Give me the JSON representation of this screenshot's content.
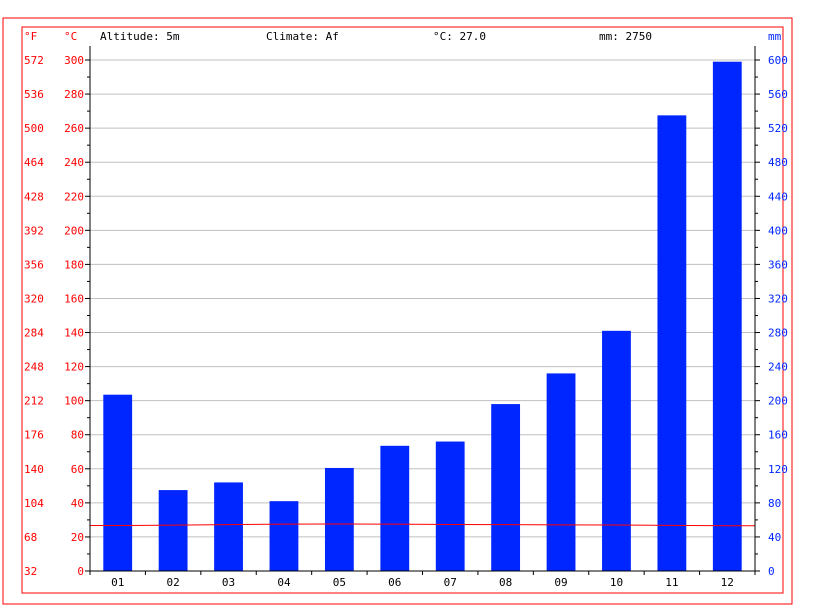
{
  "chart_data": {
    "type": "bar",
    "header": {
      "altitude": "Altitude: 5m",
      "climate": "Climate: Af",
      "temp": "°C: 27.0",
      "precip": "mm: 2750"
    },
    "units": {
      "fahrenheit": "°F",
      "celsius": "°C",
      "mm": "mm"
    },
    "categories": [
      "01",
      "02",
      "03",
      "04",
      "05",
      "06",
      "07",
      "08",
      "09",
      "10",
      "11",
      "12"
    ],
    "series": [
      {
        "unit": "mm",
        "type": "bar",
        "color": "#0026ff",
        "values": [
          207,
          95,
          104,
          82,
          121,
          147,
          152,
          196,
          232,
          282,
          535,
          598
        ]
      },
      {
        "unit": "°C",
        "type": "line",
        "color": "#ff0000",
        "values": [
          26.7,
          26.9,
          27.2,
          27.5,
          27.6,
          27.5,
          27.3,
          27.2,
          27.1,
          27.0,
          26.8,
          26.6
        ]
      }
    ],
    "yleft_celsius_ticks": [
      0,
      20,
      40,
      60,
      80,
      100,
      120,
      140,
      160,
      180,
      200,
      220,
      240,
      260,
      280,
      300
    ],
    "yleft_fahrenheit_ticks": [
      32,
      68,
      104,
      140,
      176,
      212,
      248,
      284,
      320,
      356,
      392,
      428,
      464,
      500,
      536,
      572
    ],
    "yright_mm_ticks": [
      0,
      40,
      80,
      120,
      160,
      200,
      240,
      280,
      320,
      360,
      400,
      440,
      480,
      520,
      560,
      600
    ],
    "ylim_celsius": [
      0,
      300
    ],
    "ylim_mm": [
      0,
      600
    ],
    "grid": true,
    "colors": {
      "frame": "#ff0000",
      "left_axis": "#ff0000",
      "right_axis": "#0026ff",
      "grid": "#c0c0c0"
    }
  }
}
